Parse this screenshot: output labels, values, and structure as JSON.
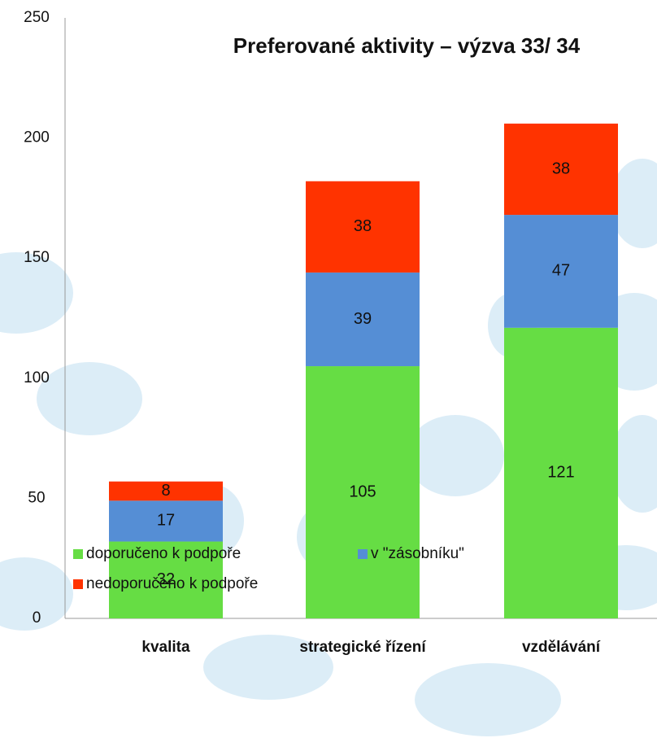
{
  "chart_data": {
    "type": "bar",
    "stacked": true,
    "title": "Preferované aktivity – výzva 33/ 34",
    "categories": [
      "kvalita",
      "strategické řízení",
      "vzdělávání"
    ],
    "series": [
      {
        "name": "doporučeno k podpoře",
        "color": "#66dd44",
        "values": [
          32,
          105,
          121
        ]
      },
      {
        "name": "v \"zásobníku\"",
        "color": "#558ed5",
        "values": [
          17,
          39,
          47
        ]
      },
      {
        "name": "nedoporučeno k podpoře",
        "color": "#ff3300",
        "values": [
          8,
          38,
          38
        ]
      }
    ],
    "ylim": [
      0,
      250
    ],
    "yticks": [
      0,
      50,
      100,
      150,
      200,
      250
    ],
    "grid": false
  }
}
